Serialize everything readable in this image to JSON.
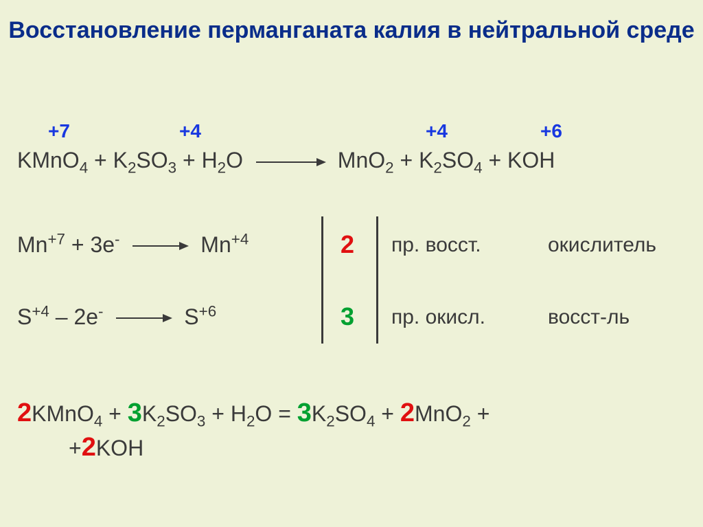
{
  "colors": {
    "background": "#eef2d8",
    "title": "#0a2d8a",
    "text": "#3a3a3a",
    "blue_accent": "#1838e0",
    "red_accent": "#e01010",
    "green_accent": "#00a030"
  },
  "title": "Восстановление перманганата калия в нейтральной среде",
  "title_fontsize": 34,
  "oxstates": {
    "plus7": "+7",
    "plus4a": "+4",
    "plus4b": "+4",
    "plus6": "+6"
  },
  "eq1": {
    "lhs": "KMnO<sub>4</sub> + K<sub>2</sub>SO<sub>3</sub> + H<sub>2</sub>O",
    "rhs": "MnO<sub>2</sub> + K<sub>2</sub>SO<sub>4</sub> + KOH",
    "fontsize": 32
  },
  "half1": {
    "left": "Mn<sup>+7</sup> + 3e<sup>-</sup>",
    "right": "Mn<sup>+4</sup>",
    "mult": "2",
    "proc": "пр. восст.",
    "role": "окислитель",
    "mult_color": "#e01010"
  },
  "half2": {
    "left": "S<sup>+4</sup> – 2e<sup>-</sup>",
    "right": "S<sup>+6</sup>",
    "mult": "3",
    "proc": "пр. окисл.",
    "role": "восст-ль",
    "mult_color": "#00a030"
  },
  "eq2": {
    "c1": "2",
    "t1": "KMnO<sub>4</sub> + ",
    "c2": "3",
    "t2": "K<sub>2</sub>SO<sub>3</sub> + H<sub>2</sub>O = ",
    "c3": "3",
    "t3": "K<sub>2</sub>SO<sub>4</sub> +",
    "c4": "2",
    "t4": "MnO<sub>2</sub> +",
    "t5": "+",
    "c5": "2",
    "t6": "KOH",
    "fontsize": 32
  }
}
